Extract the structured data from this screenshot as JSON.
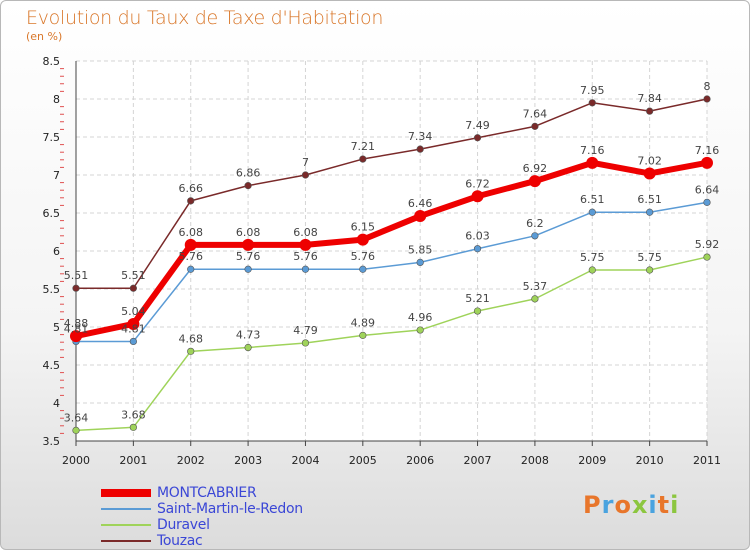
{
  "header": {
    "title": "Evolution du Taux de Taxe d'Habitation",
    "subtitle": "(en %)"
  },
  "logo": {
    "text": "Proxiti",
    "colors": [
      "#e8762b",
      "#4aa3df",
      "#e8762b",
      "#8cc63f",
      "#4aa3df",
      "#e8762b",
      "#8cc63f"
    ]
  },
  "chart_data": {
    "type": "line",
    "x": [
      "2000",
      "2001",
      "2002",
      "2003",
      "2004",
      "2005",
      "2006",
      "2007",
      "2008",
      "2009",
      "2010",
      "2011"
    ],
    "ylim": [
      3.5,
      8.5
    ],
    "yticks": [
      "3.5",
      "4",
      "4.5",
      "5",
      "5.5",
      "6",
      "6.5",
      "7",
      "7.5",
      "8",
      "8.5"
    ],
    "grid": true,
    "legend_position": "bottom-left",
    "series": [
      {
        "name": "MONTCABRIER",
        "color": "#ee0000",
        "values": [
          4.88,
          5.04,
          6.08,
          6.08,
          6.08,
          6.15,
          6.46,
          6.72,
          6.92,
          7.16,
          7.02,
          7.16
        ],
        "labels": [
          "4.88",
          "5.04",
          "6.08",
          "6.08",
          "6.08",
          "6.15",
          "6.46",
          "6.72",
          "6.92",
          "7.16",
          "7.02",
          "7.16"
        ]
      },
      {
        "name": "Saint-Martin-le-Redon",
        "color": "#5b9bd5",
        "values": [
          4.81,
          4.81,
          5.76,
          5.76,
          5.76,
          5.76,
          5.85,
          6.03,
          6.2,
          6.51,
          6.51,
          6.64
        ],
        "labels": [
          "4.81",
          "4.81",
          "5.76",
          "5.76",
          "5.76",
          "5.76",
          "5.85",
          "6.03",
          "6.2",
          "6.51",
          "6.51",
          "6.64"
        ]
      },
      {
        "name": "Duravel",
        "color": "#9fd35a",
        "values": [
          3.64,
          3.68,
          4.68,
          4.73,
          4.79,
          4.89,
          4.96,
          5.21,
          5.37,
          5.75,
          5.75,
          5.92
        ],
        "labels": [
          "3.64",
          "3.68",
          "4.68",
          "4.73",
          "4.79",
          "4.89",
          "4.96",
          "5.21",
          "5.37",
          "5.75",
          "5.75",
          "5.92"
        ]
      },
      {
        "name": "Touzac",
        "color": "#7a2a2a",
        "values": [
          5.51,
          5.51,
          6.66,
          6.86,
          7,
          7.21,
          7.34,
          7.49,
          7.64,
          7.95,
          7.84,
          8
        ],
        "labels": [
          "5.51",
          "5.51",
          "6.66",
          "6.86",
          "7",
          "7.21",
          "7.34",
          "7.49",
          "7.64",
          "7.95",
          "7.84",
          "8"
        ]
      }
    ]
  }
}
